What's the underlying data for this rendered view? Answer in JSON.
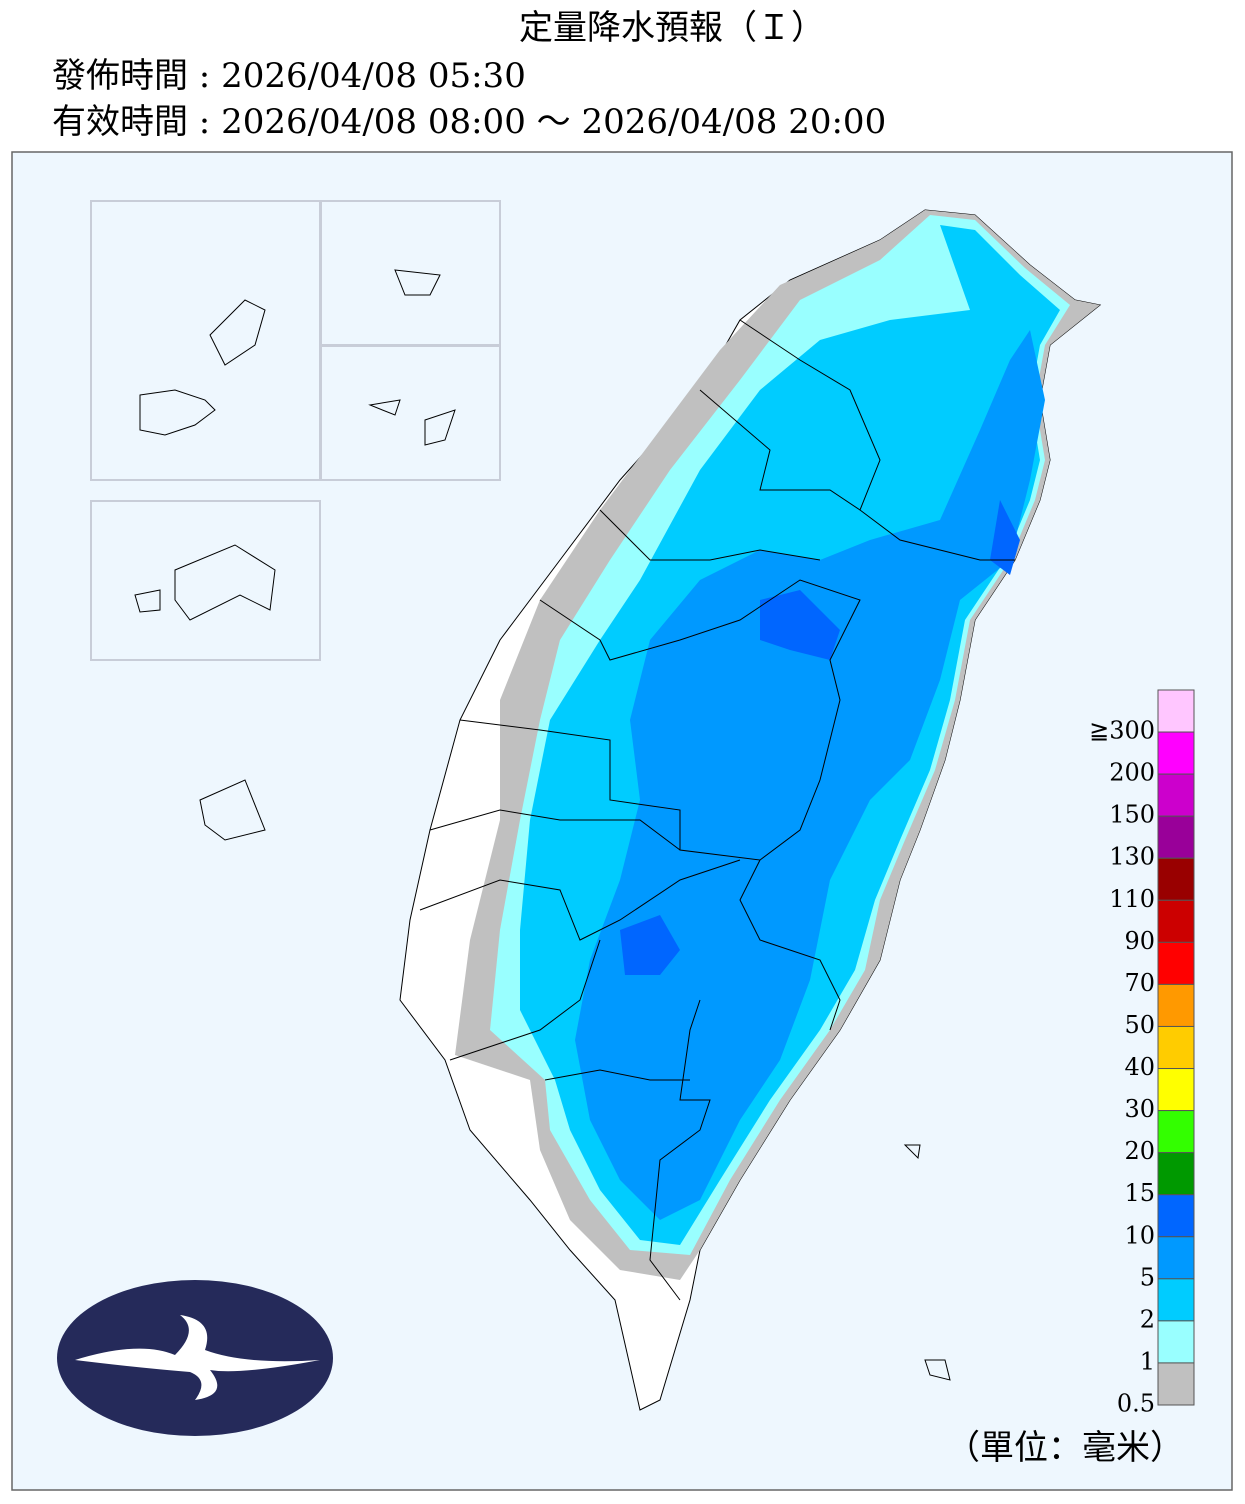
{
  "header": {
    "title": "定量降水預報（Ｉ）",
    "issued": "發佈時間 : 2026/04/08 05:30",
    "valid": "有效時間 : 2026/04/08 08:00 ～ 2026/04/08 20:00"
  },
  "legend": {
    "labels": [
      "≧300",
      "200",
      "150",
      "130",
      "110",
      "90",
      "70",
      "50",
      "40",
      "30",
      "20",
      "15",
      "10",
      "5",
      "2",
      "1",
      "0.5"
    ],
    "colors": [
      "#ffc6ff",
      "#ff00ff",
      "#cc00cc",
      "#990099",
      "#990000",
      "#cc0000",
      "#ff0000",
      "#ff9900",
      "#ffcc00",
      "#ffff00",
      "#33ff00",
      "#009900",
      "#0066ff",
      "#0099ff",
      "#00ccff",
      "#99ffff",
      "#c0c0c0"
    ],
    "unit": "（單位：毫米）"
  }
}
